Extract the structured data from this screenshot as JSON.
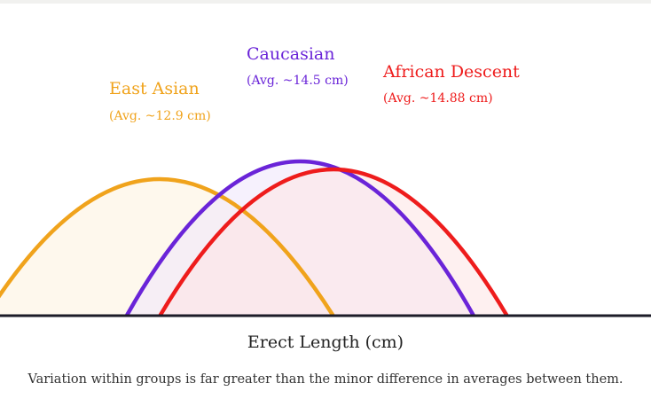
{
  "chart_data": {
    "type": "area",
    "xlabel": "Erect Length (cm)",
    "caption": "Variation within groups is far greater than the minor difference in averages between them.",
    "grid": false,
    "baseline_color": "#1c1c28",
    "series": [
      {
        "name": "East Asian",
        "avg_label": "(Avg. ~12.9 cm)",
        "mean": 12.9,
        "color": "#f0a31c",
        "fill": "#fdf3df"
      },
      {
        "name": "Caucasian",
        "avg_label": "(Avg. ~14.5 cm)",
        "mean": 14.5,
        "color": "#6a24d8",
        "fill": "#efe6fb"
      },
      {
        "name": "African Descent",
        "avg_label": "(Avg. ~14.88 cm)",
        "mean": 14.88,
        "color": "#ee1c1c",
        "fill": "#fde3e3"
      }
    ]
  }
}
